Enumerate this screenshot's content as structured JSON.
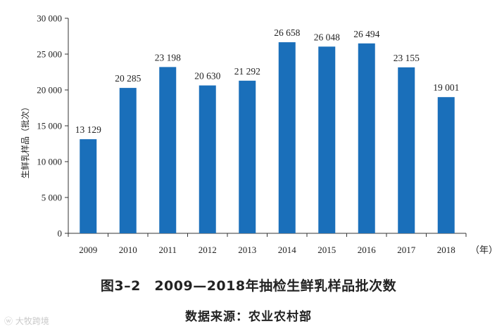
{
  "figure": {
    "title": "图3–2　2009—2018年抽检生鲜乳样品批次数",
    "source": "数据来源：农业农村部",
    "watermark": "ⓦ 大牧跨境"
  },
  "chart_data": {
    "type": "bar",
    "categories": [
      "2009",
      "2010",
      "2011",
      "2012",
      "2013",
      "2014",
      "2015",
      "2016",
      "2017",
      "2018"
    ],
    "values": [
      13129,
      20285,
      23198,
      20630,
      21292,
      26658,
      26048,
      26494,
      23155,
      19001
    ],
    "value_labels": [
      "13 129",
      "20 285",
      "23 198",
      "20 630",
      "21 292",
      "26 658",
      "26 048",
      "26 494",
      "23 155",
      "19 001"
    ],
    "ylabel": "生鲜乳样品（批次）",
    "xunit": "（年）",
    "ylim": [
      0,
      30000
    ],
    "yticks": [
      0,
      5000,
      10000,
      15000,
      20000,
      25000,
      30000
    ],
    "ytick_labels": [
      "0",
      "5 000",
      "10 000",
      "15 000",
      "20 000",
      "25 000",
      "30 000"
    ],
    "bar_color": "#1a6fba",
    "grid": false
  }
}
